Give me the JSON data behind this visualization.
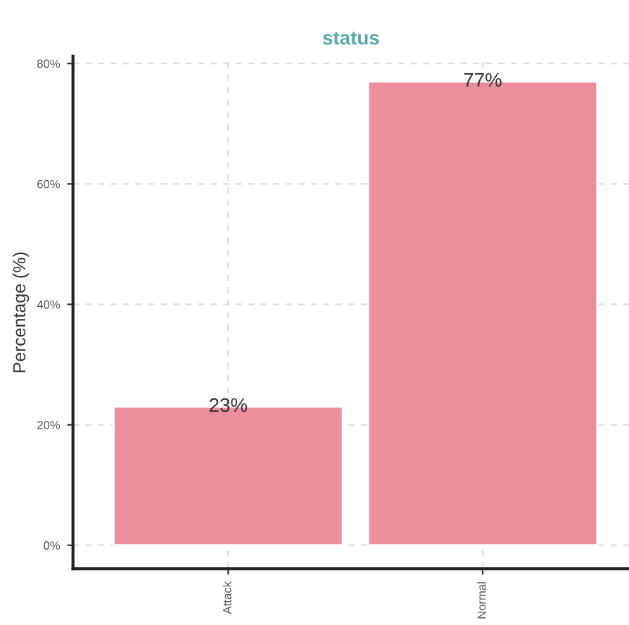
{
  "chart_data": {
    "type": "bar",
    "title": "status",
    "ylabel": "Percentage (%)",
    "categories": [
      "Attack",
      "Normal"
    ],
    "series": [
      {
        "color": "#ec8f9c",
        "values": [
          23,
          77
        ]
      }
    ],
    "value_labels": [
      "23%",
      "77%"
    ],
    "ylim": [
      -3.9,
      81.2
    ],
    "yticks": [
      {
        "value": 0,
        "label": "0%"
      },
      {
        "value": 20,
        "label": "20%"
      },
      {
        "value": 40,
        "label": "40%"
      },
      {
        "value": 60,
        "label": "60%"
      },
      {
        "value": 80,
        "label": "80%"
      }
    ],
    "grid": true
  }
}
